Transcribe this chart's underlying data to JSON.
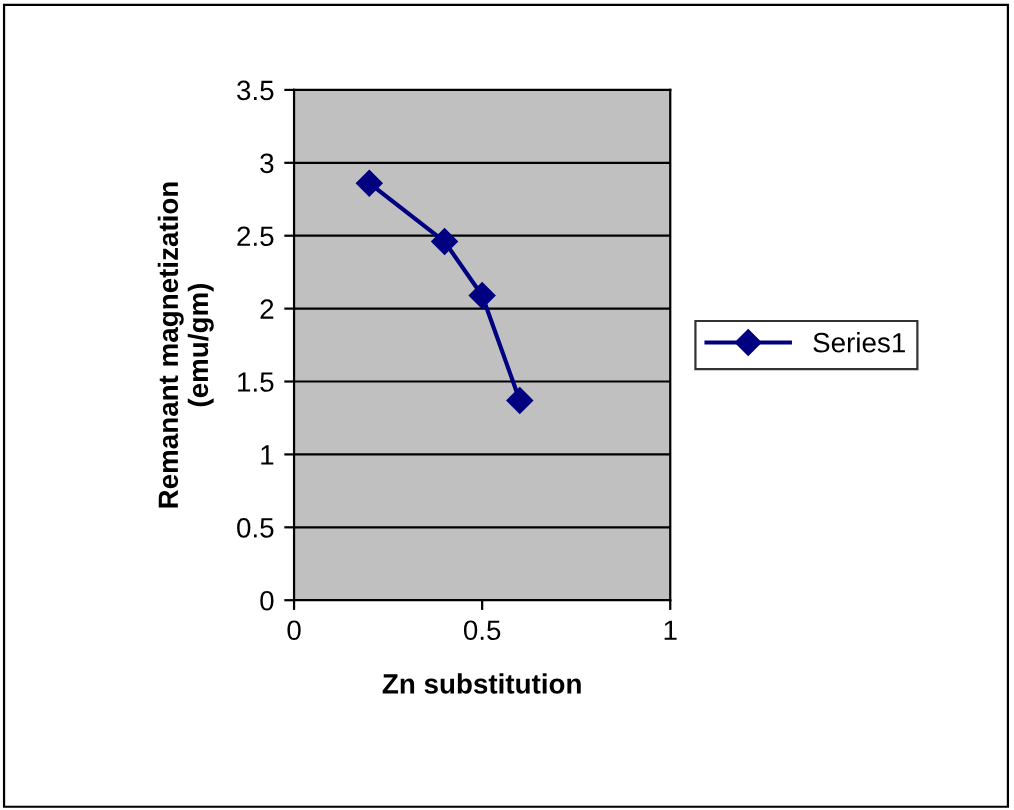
{
  "chart_data": {
    "type": "line",
    "xlabel": "Zn substitution",
    "ylabel": "Remanant magnetization\n(emu/gm)",
    "series": [
      {
        "name": "Series1",
        "color": "#000080",
        "x": [
          0.2,
          0.4,
          0.5,
          0.6
        ],
        "values": [
          2.86,
          2.46,
          2.09,
          1.37
        ]
      }
    ],
    "xlim": [
      0,
      1
    ],
    "xticks": [
      0,
      0.5,
      1
    ],
    "ylim": [
      0,
      3.5
    ],
    "yticks": [
      0,
      0.5,
      1,
      1.5,
      2,
      2.5,
      3,
      3.5
    ],
    "grid": "y",
    "legend": "right",
    "marker": "diamond",
    "line_style": "solid"
  }
}
